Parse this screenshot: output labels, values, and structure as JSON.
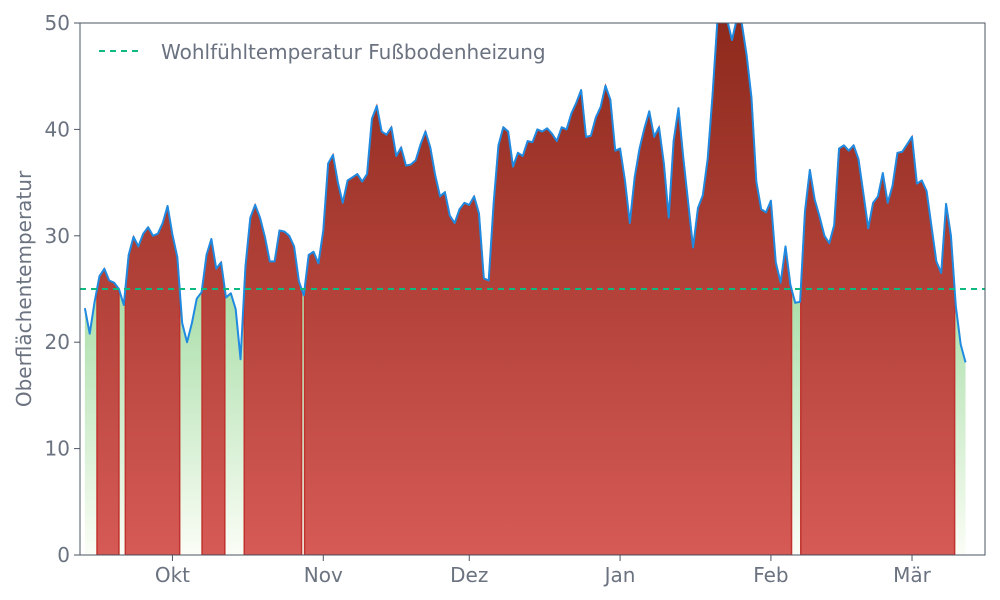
{
  "chart_data": {
    "type": "area",
    "title": "",
    "xlabel": "",
    "ylabel": "Oberflächentemperatur",
    "ylim": [
      0,
      50
    ],
    "y_ticks": [
      0,
      10,
      20,
      30,
      40,
      50
    ],
    "x_ticks": [
      {
        "label": "Okt",
        "date": "2023-10-01"
      },
      {
        "label": "Nov",
        "date": "2023-11-01"
      },
      {
        "label": "Dez",
        "date": "2023-12-01"
      },
      {
        "label": "Jan",
        "date": "2024-01-01"
      },
      {
        "label": "Feb",
        "date": "2024-02-01"
      },
      {
        "label": "Mär",
        "date": "2024-03-01"
      }
    ],
    "x_range": [
      "2023-09-12",
      "2024-03-16"
    ],
    "threshold": {
      "name": "Wohlfühltemperatur Fußbodenheizung",
      "value": 25,
      "color": "#10b981",
      "style": "dashed"
    },
    "legend": {
      "position": "top-left"
    },
    "grid": false,
    "colors": {
      "line": "#1f8ae0",
      "above": "#b8322a",
      "below": "#7fcf7f",
      "axis": "#4b5563"
    },
    "series": [
      {
        "start_date": "2023-09-13",
        "values": [
          23.2,
          20.8,
          23.8,
          26.2,
          26.9,
          25.8,
          25.6,
          25.0,
          23.5,
          28.2,
          29.9,
          29.0,
          30.2,
          30.8,
          30.0,
          30.2,
          31.2,
          32.8,
          30.1,
          28.0,
          21.8,
          20.0,
          21.8,
          24.1,
          24.7,
          28.2,
          29.7,
          26.9,
          27.5,
          24.2,
          24.6,
          23.1,
          18.4,
          27.1,
          31.7,
          32.9,
          31.7,
          29.9,
          27.6,
          27.6,
          30.5,
          30.4,
          30.0,
          29.0,
          25.7,
          24.4,
          28.2,
          28.5,
          27.4,
          30.5,
          36.8,
          37.6,
          35.0,
          33.1,
          35.2,
          35.5,
          35.8,
          35.1,
          35.8,
          41.0,
          42.2,
          39.8,
          39.5,
          40.2,
          37.5,
          38.3,
          36.6,
          36.7,
          37.1,
          38.6,
          39.8,
          38.3,
          35.7,
          33.7,
          34.1,
          31.9,
          31.2,
          32.5,
          33.1,
          32.9,
          33.7,
          32.1,
          26.0,
          25.8,
          33.0,
          38.5,
          40.2,
          39.8,
          36.5,
          37.8,
          37.5,
          38.9,
          38.8,
          40.0,
          39.8,
          40.1,
          39.6,
          38.9,
          40.2,
          40.0,
          41.5,
          42.5,
          43.7,
          39.3,
          39.4,
          41.1,
          42.1,
          44.1,
          42.8,
          38.0,
          38.2,
          35.2,
          31.2,
          35.5,
          38.2,
          40.1,
          41.7,
          39.3,
          40.2,
          36.8,
          31.7,
          38.9,
          42.0,
          37.3,
          33.1,
          28.9,
          32.6,
          33.8,
          37.2,
          43.2,
          50.2,
          50.3,
          50.3,
          48.4,
          50.4,
          50.0,
          47.0,
          43.0,
          35.1,
          32.5,
          32.2,
          33.3,
          27.5,
          25.6,
          29.0,
          25.4,
          23.7,
          23.8,
          32.3,
          36.2,
          33.4,
          31.8,
          30.0,
          29.3,
          31.0,
          38.2,
          38.5,
          38.0,
          38.5,
          37.2,
          34.0,
          30.7,
          33.1,
          33.7,
          35.9,
          33.1,
          34.7,
          37.8,
          37.9,
          38.6,
          39.3,
          34.9,
          35.2,
          34.2,
          30.9,
          27.6,
          26.5,
          33.0,
          30.0,
          23.4,
          19.8,
          18.1
        ]
      }
    ]
  }
}
